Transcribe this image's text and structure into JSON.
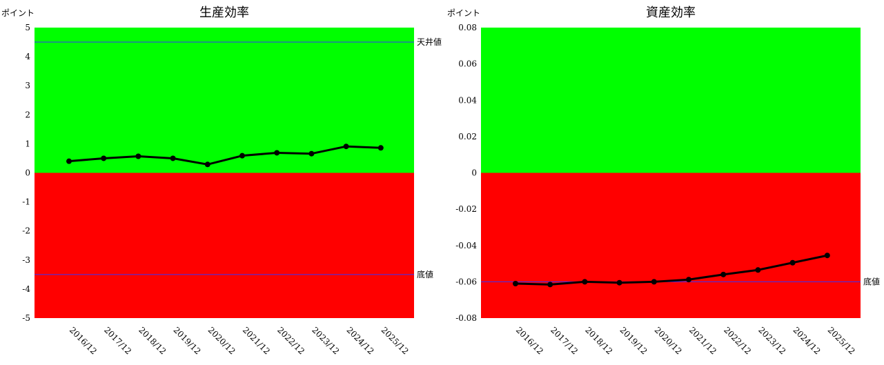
{
  "chart_data": [
    {
      "type": "line",
      "title": "生産効率",
      "ylabel": "ポイント",
      "xlabel": "",
      "categories": [
        "2016/12",
        "2017/12",
        "2018/12",
        "2019/12",
        "2020/12",
        "2021/12",
        "2022/12",
        "2023/12",
        "2024/12",
        "2025/12"
      ],
      "series": [
        {
          "values": [
            0.4,
            0.5,
            0.57,
            0.5,
            0.29,
            0.59,
            0.69,
            0.66,
            0.91,
            0.86
          ]
        }
      ],
      "ylim": [
        -5,
        5
      ],
      "yticks": [
        "5",
        "4",
        "3",
        "2",
        "1",
        "0",
        "-1",
        "-2",
        "-3",
        "-4",
        "-5"
      ],
      "reference_lines": [
        {
          "label": "天井値",
          "value": 4.5
        },
        {
          "label": "底値",
          "value": -3.5
        }
      ],
      "regions": {
        "above_zero_color": "#00ff00",
        "below_zero_color": "#ff0000"
      },
      "line_color": "#000000",
      "reference_line_color": "#3333ff",
      "grid": false
    },
    {
      "type": "line",
      "title": "資産効率",
      "ylabel": "ポイント",
      "xlabel": "",
      "categories": [
        "2016/12",
        "2017/12",
        "2018/12",
        "2019/12",
        "2020/12",
        "2021/12",
        "2022/12",
        "2023/12",
        "2024/12",
        "2025/12"
      ],
      "series": [
        {
          "values": [
            -0.061,
            -0.0615,
            -0.06,
            -0.0605,
            -0.06,
            -0.0588,
            -0.056,
            -0.0535,
            -0.0495,
            -0.0455
          ]
        }
      ],
      "ylim": [
        -0.08,
        0.08
      ],
      "yticks": [
        "0.08",
        "0.06",
        "0.04",
        "0.02",
        "0",
        "-0.02",
        "-0.04",
        "-0.06",
        "-0.08"
      ],
      "reference_lines": [
        {
          "label": "底値",
          "value": -0.06
        }
      ],
      "regions": {
        "above_zero_color": "#00ff00",
        "below_zero_color": "#ff0000"
      },
      "line_color": "#000000",
      "reference_line_color": "#3333ff",
      "grid": false
    }
  ]
}
